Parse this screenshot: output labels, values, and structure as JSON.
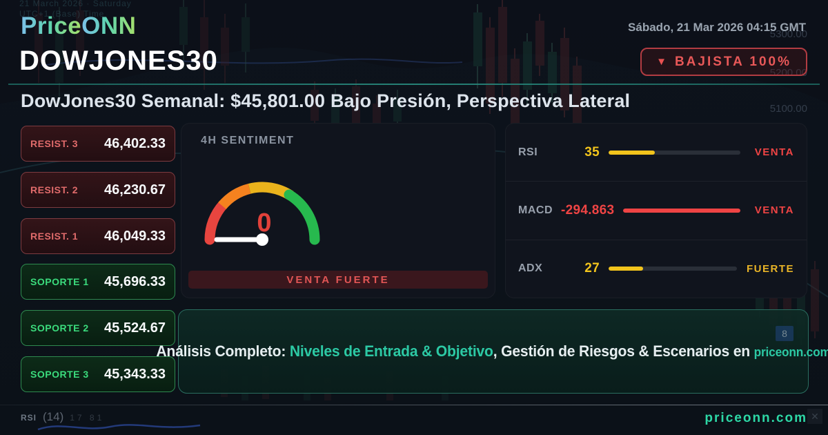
{
  "brand": {
    "logo_price": "Price",
    "logo_onn": "ONN"
  },
  "header": {
    "datetime": "Sábado, 21 Mar 2026 04:15 GMT",
    "symbol": "DOWJONES30",
    "badge": {
      "icon": "▼",
      "label": "BAJISTA 100%"
    },
    "subtitle": "DowJones30 Semanal: $45,801.00 Bajo Presión, Perspectiva Lateral"
  },
  "levels": {
    "resistances": [
      {
        "label": "RESIST. 3",
        "value": "46,402.33"
      },
      {
        "label": "RESIST. 2",
        "value": "46,230.67"
      },
      {
        "label": "RESIST. 1",
        "value": "46,049.33"
      }
    ],
    "supports": [
      {
        "label": "SOPORTE 1",
        "value": "45,696.33"
      },
      {
        "label": "SOPORTE 2",
        "value": "45,524.67"
      },
      {
        "label": "SOPORTE 3",
        "value": "45,343.33"
      }
    ]
  },
  "sentiment": {
    "title": "4H SENTIMENT",
    "gauge_value": "0",
    "signal": "VENTA FUERTE"
  },
  "indicators": [
    {
      "name": "RSI",
      "value": "35",
      "value_color": "#f2c41c",
      "bar_width": "35%",
      "bar_color": "#f2c41c",
      "signal": "VENTA",
      "signal_color": "#ef4444"
    },
    {
      "name": "MACD",
      "value": "-294.863",
      "value_color": "#ef4444",
      "bar_width": "100%",
      "bar_color": "#ef4444",
      "signal": "VENTA",
      "signal_color": "#ef4444"
    },
    {
      "name": "ADX",
      "value": "27",
      "value_color": "#f2c41c",
      "bar_width": "27%",
      "bar_color": "#f2c41c",
      "signal": "FUERTE",
      "signal_color": "#e9b427"
    }
  ],
  "banner": {
    "prefix": "Análisis Completo: ",
    "highlight": "Niveles de Entrada & Objetivo",
    "middle": ", Gestión de Riesgos & Escenarios en ",
    "site": "priceonn.com"
  },
  "footer": {
    "left_indicator": "RSI",
    "left_period": "(14)",
    "left_levels": "17 81",
    "website": "priceonn.com"
  },
  "background": {
    "watermark_line1": "21 March 2026 · Saturday",
    "watermark_line2": "UTC+1 (Base) Time",
    "axis_labels": [
      "5300.00",
      "5200.00",
      "5100.00"
    ],
    "price_tag": "8",
    "close_glyph": "✕"
  },
  "colors": {
    "accent_teal": "#2dd8a6",
    "bearish_red": "#ef4444",
    "warning_yellow": "#f2c41c",
    "bullish_green": "#27b94e",
    "gauge_value_red": "#e2413a"
  }
}
